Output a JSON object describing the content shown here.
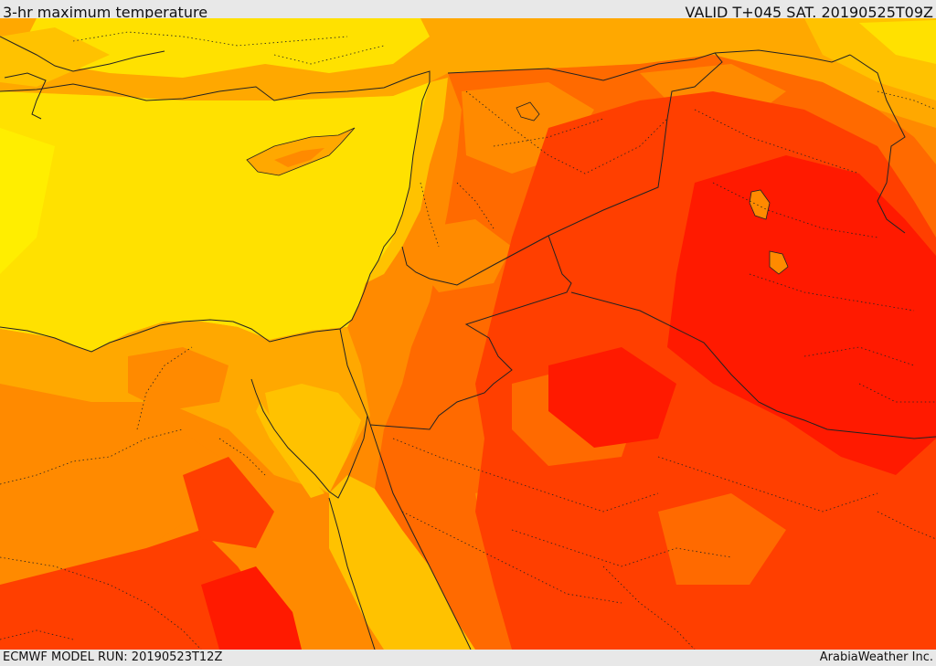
{
  "header": {
    "title": "3-hr maximum temperature",
    "valid": "VALID T+045 SAT. 20190525T09Z"
  },
  "footer": {
    "model_run": "ECMWF MODEL RUN: 20190523T12Z",
    "credit": "ArabiaWeather Inc."
  },
  "palette": {
    "yellow": "#ffe100",
    "gold": "#ffc200",
    "amber": "#ffa800",
    "orange": "#ff8a00",
    "dark_orange": "#ff6a00",
    "red_orange": "#ff3f00",
    "red": "#ff1a00"
  }
}
